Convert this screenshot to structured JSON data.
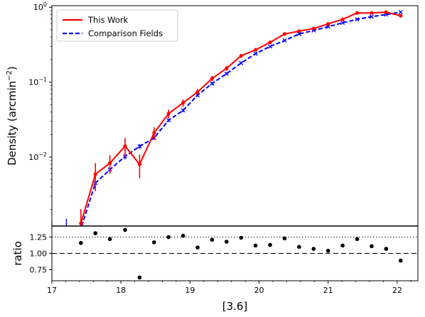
{
  "chart_data": [
    {
      "type": "line",
      "panel": "main",
      "ylabel": "Density (arcmin$^{-2}$)",
      "ylabel_base": "Density (arcmin",
      "ylabel_exp": "−2",
      "ylabel_close": ")",
      "yscale": "log",
      "xlim": [
        17.0,
        22.3
      ],
      "ylim": [
        0.0012,
        1.05
      ],
      "yticks": [
        {
          "value": 0.01,
          "base": "10",
          "exp": "−2"
        },
        {
          "value": 0.1,
          "base": "10",
          "exp": "−1"
        },
        {
          "value": 1.0,
          "base": "10",
          "exp": "0"
        }
      ],
      "legend": {
        "placement": "top-left"
      },
      "grid": false,
      "series": [
        {
          "name": "This Work",
          "color": "#ff0000",
          "style": "solid",
          "marker": "dot",
          "x": [
            17.42,
            17.63,
            17.84,
            18.06,
            18.27,
            18.48,
            18.69,
            18.9,
            19.11,
            19.32,
            19.53,
            19.74,
            19.95,
            20.16,
            20.37,
            20.58,
            20.79,
            21.0,
            21.21,
            21.42,
            21.63,
            21.84,
            22.05
          ],
          "y": [
            0.0013,
            0.0059,
            0.0083,
            0.014,
            0.008,
            0.021,
            0.038,
            0.053,
            0.074,
            0.112,
            0.153,
            0.225,
            0.27,
            0.34,
            0.44,
            0.48,
            0.52,
            0.6,
            0.69,
            0.84,
            0.84,
            0.86,
            0.77
          ],
          "yerr": [
            0.0007,
            0.0024,
            0.0023,
            0.004,
            0.0028,
            0.004,
            0.005,
            0.006,
            0.007,
            0.009,
            0.011,
            0.013,
            0.015,
            0.017,
            0.019,
            0.02,
            0.021,
            0.022,
            0.024,
            0.026,
            0.026,
            0.027,
            0.026
          ]
        },
        {
          "name": "Comparison Fields",
          "color": "#0000ff",
          "style": "dashed",
          "marker": "x",
          "x": [
            17.0,
            17.21,
            17.42,
            17.63,
            17.84,
            18.06,
            18.27,
            18.48,
            18.69,
            18.9,
            19.11,
            19.32,
            19.53,
            19.74,
            19.95,
            20.16,
            20.37,
            20.58,
            20.79,
            21.0,
            21.21,
            21.42,
            21.63,
            21.84,
            22.05
          ],
          "y": [
            0.0011,
            0.0011,
            0.0011,
            0.0045,
            0.0068,
            0.0102,
            0.0139,
            0.018,
            0.031,
            0.042,
            0.067,
            0.096,
            0.13,
            0.18,
            0.24,
            0.3,
            0.36,
            0.44,
            0.49,
            0.55,
            0.62,
            0.69,
            0.75,
            0.8,
            0.86
          ],
          "yerr": [
            0.0003,
            0.0004,
            0.0003,
            0.0008,
            0.0007,
            0.0009,
            0.001,
            0.001,
            0.0015,
            0.002,
            0.003,
            0.004,
            0.005,
            0.006,
            0.007,
            0.008,
            0.009,
            0.01,
            0.01,
            0.011,
            0.012,
            0.012,
            0.013,
            0.013,
            0.014
          ]
        }
      ]
    },
    {
      "type": "scatter",
      "panel": "ratio",
      "xlabel": "[3.6]",
      "ylabel": "ratio",
      "xlim": [
        17.0,
        22.3
      ],
      "ylim": [
        0.58,
        1.42
      ],
      "xticks": [
        "17",
        "18",
        "19",
        "20",
        "21",
        "22"
      ],
      "yticks": [
        "0.75",
        "1.00",
        "1.25"
      ],
      "reference_lines": [
        {
          "y": 1.0,
          "style": "dashed"
        },
        {
          "y": 1.25,
          "style": "dotted"
        }
      ],
      "series": [
        {
          "color": "#000000",
          "marker": "dot",
          "x": [
            17.42,
            17.63,
            17.84,
            18.06,
            18.27,
            18.48,
            18.69,
            18.9,
            19.11,
            19.32,
            19.53,
            19.74,
            19.95,
            20.16,
            20.37,
            20.58,
            20.79,
            21.0,
            21.21,
            21.42,
            21.63,
            21.84,
            22.05
          ],
          "y": [
            1.16,
            1.31,
            1.22,
            1.36,
            0.63,
            1.17,
            1.25,
            1.27,
            1.09,
            1.21,
            1.18,
            1.24,
            1.12,
            1.13,
            1.23,
            1.1,
            1.07,
            1.04,
            1.12,
            1.22,
            1.11,
            1.07,
            0.89
          ]
        }
      ]
    }
  ]
}
